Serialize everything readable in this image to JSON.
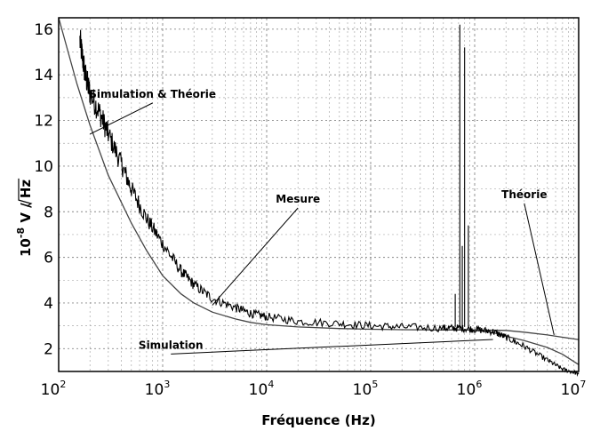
{
  "chart_data": {
    "type": "line",
    "title": "",
    "xlabel": "Fréquence (Hz)",
    "ylabel_prefix": "10",
    "ylabel_exp": "-8",
    "ylabel_unit": " V / ",
    "ylabel_sqrt": "Hz",
    "x_scale": "log",
    "xlim": [
      100,
      10000000
    ],
    "ylim": [
      1,
      16.5
    ],
    "grid": true,
    "x_ticks": [
      {
        "base": "10",
        "exp": "2",
        "value": 100
      },
      {
        "base": "10",
        "exp": "3",
        "value": 1000
      },
      {
        "base": "10",
        "exp": "4",
        "value": 10000
      },
      {
        "base": "10",
        "exp": "5",
        "value": 100000
      },
      {
        "base": "10",
        "exp": "6",
        "value": 1000000
      },
      {
        "base": "10",
        "exp": "7",
        "value": 10000000
      }
    ],
    "y_ticks": [
      {
        "label": "2",
        "value": 2
      },
      {
        "label": "4",
        "value": 4
      },
      {
        "label": "6",
        "value": 6
      },
      {
        "label": "8",
        "value": 8
      },
      {
        "label": "10",
        "value": 10
      },
      {
        "label": "12",
        "value": 12
      },
      {
        "label": "14",
        "value": 14
      },
      {
        "label": "16",
        "value": 16
      }
    ],
    "series": [
      {
        "name": "Simulation & Théorie",
        "color": "#444444",
        "noise": 0,
        "x": [
          100,
          150,
          200,
          300,
          500,
          700,
          1000,
          1500,
          2000,
          3000,
          5000,
          7000,
          10000,
          20000,
          50000,
          100000,
          200000,
          500000,
          1000000
        ],
        "y": [
          16.5,
          13.6,
          11.8,
          9.6,
          7.5,
          6.3,
          5.2,
          4.4,
          4.0,
          3.6,
          3.3,
          3.15,
          3.05,
          2.95,
          2.88,
          2.85,
          2.83,
          2.82,
          2.82
        ]
      },
      {
        "name": "Théorie",
        "color": "#444444",
        "noise": 0,
        "x": [
          1000000,
          2000000,
          3000000,
          5000000,
          7000000,
          10000000
        ],
        "y": [
          2.82,
          2.8,
          2.72,
          2.6,
          2.5,
          2.4
        ]
      },
      {
        "name": "Simulation",
        "color": "#444444",
        "noise": 0,
        "x": [
          1000000,
          1500000,
          2000000,
          3000000,
          5000000,
          7000000,
          10000000
        ],
        "y": [
          2.8,
          2.7,
          2.55,
          2.35,
          2.05,
          1.75,
          1.3
        ]
      },
      {
        "name": "Mesure",
        "color": "#000000",
        "noise": 1,
        "x": [
          160,
          180,
          200,
          250,
          300,
          400,
          500,
          700,
          1000,
          1500,
          2000,
          3000,
          5000,
          7000,
          10000,
          20000,
          50000,
          100000,
          200000,
          500000,
          700000,
          1000000,
          1500000,
          2000000,
          3000000,
          5000000,
          7000000,
          10000000
        ],
        "y": [
          15.5,
          14.0,
          13.2,
          12.3,
          11.4,
          10.1,
          9.0,
          7.7,
          6.6,
          5.4,
          4.8,
          4.2,
          3.8,
          3.55,
          3.4,
          3.2,
          3.1,
          3.0,
          2.95,
          2.9,
          2.9,
          2.85,
          2.75,
          2.5,
          2.1,
          1.5,
          1.1,
          0.9
        ]
      }
    ],
    "peaks": [
      {
        "x": 650000,
        "y": 4.4
      },
      {
        "x": 720000,
        "y": 16.2
      },
      {
        "x": 760000,
        "y": 6.5
      },
      {
        "x": 800000,
        "y": 15.2
      },
      {
        "x": 870000,
        "y": 7.4
      }
    ],
    "annotations": [
      {
        "text": "Simulation & Théorie",
        "x": 800,
        "y": 13.0,
        "to_x": 200,
        "to_y": 11.4
      },
      {
        "text": "Mesure",
        "x": 20000,
        "y": 8.4,
        "to_x": 3000,
        "to_y": 3.9
      },
      {
        "text": "Théorie",
        "x": 3000000,
        "y": 8.6,
        "to_x": 5800000,
        "to_y": 2.6
      },
      {
        "text": "Simulation",
        "x": 1200,
        "y": 2.0,
        "to_x": 1500000,
        "to_y": 2.4
      }
    ]
  }
}
